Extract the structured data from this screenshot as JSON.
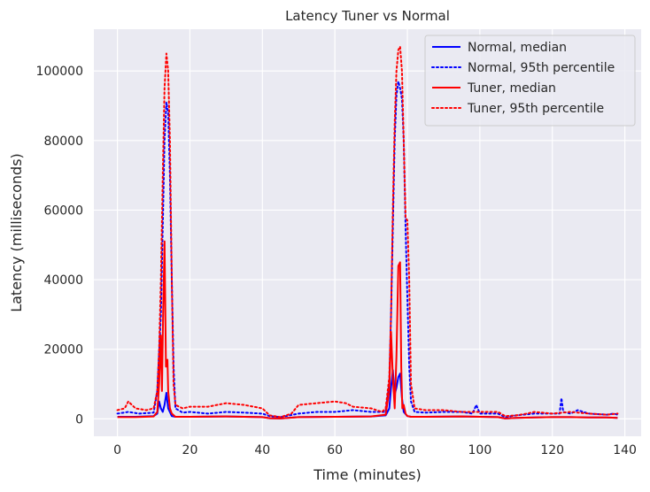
{
  "chart_data": {
    "type": "line",
    "title": "Latency Tuner vs Normal",
    "xlabel": "Time (minutes)",
    "ylabel": "Latency (milliseconds)",
    "xlim": [
      -6.5,
      144.5
    ],
    "ylim": [
      -5000,
      112000
    ],
    "xticks": [
      0,
      20,
      40,
      60,
      80,
      100,
      120,
      140
    ],
    "yticks": [
      0,
      20000,
      40000,
      60000,
      80000,
      100000
    ],
    "grid": true,
    "legend_position": "top-right",
    "series": [
      {
        "name": "Normal, median",
        "color": "#0000ff",
        "style": "solid",
        "x": [
          0,
          5,
          10,
          11,
          11.5,
          12,
          12.5,
          13,
          13.5,
          14,
          15,
          16,
          20,
          30,
          40,
          42,
          45,
          50,
          60,
          70,
          74,
          75,
          75.5,
          76,
          76.5,
          77,
          77.5,
          78,
          78.5,
          79,
          80,
          81,
          85,
          95,
          100,
          105,
          107,
          110,
          115,
          120,
          125,
          130,
          135,
          138
        ],
        "y": [
          600,
          600,
          800,
          1500,
          5000,
          3000,
          2000,
          4000,
          7500,
          3000,
          800,
          600,
          600,
          700,
          500,
          200,
          100,
          500,
          600,
          700,
          1000,
          3000,
          9000,
          14000,
          7000,
          9000,
          12000,
          13000,
          6000,
          2000,
          800,
          600,
          600,
          700,
          600,
          500,
          100,
          300,
          400,
          500,
          500,
          400,
          400,
          300
        ]
      },
      {
        "name": "Normal, 95th percentile",
        "color": "#0000ff",
        "style": "dotted",
        "x": [
          0,
          3,
          6,
          10,
          11,
          12,
          12.5,
          13,
          13.5,
          14,
          14.5,
          15,
          15.5,
          16,
          18,
          20,
          25,
          30,
          35,
          40,
          42,
          45,
          50,
          55,
          60,
          65,
          70,
          74,
          75,
          75.5,
          76,
          76.5,
          77,
          77.5,
          78,
          78.5,
          79,
          79.5,
          80,
          80.5,
          81,
          82,
          85,
          90,
          95,
          98,
          99,
          100,
          105,
          107,
          110,
          115,
          120,
          122,
          122.5,
          123,
          125,
          127,
          130,
          135,
          137,
          138
        ],
        "y": [
          1500,
          2000,
          1500,
          1800,
          8000,
          30000,
          55000,
          80000,
          91000,
          88000,
          70000,
          40000,
          15000,
          3000,
          1800,
          2000,
          1500,
          2000,
          1800,
          1500,
          800,
          500,
          1500,
          2000,
          2000,
          2500,
          2000,
          2000,
          10000,
          30000,
          55000,
          80000,
          93000,
          97000,
          95000,
          92000,
          80000,
          55000,
          35000,
          15000,
          5000,
          2000,
          1800,
          2000,
          2000,
          1500,
          4000,
          1500,
          1500,
          500,
          1000,
          1500,
          1500,
          1500,
          6000,
          2000,
          1500,
          2500,
          1500,
          1200,
          1500,
          1200
        ]
      },
      {
        "name": "Tuner, median",
        "color": "#ff0000",
        "style": "solid",
        "x": [
          0,
          5,
          10,
          11,
          11.5,
          12,
          12.3,
          12.6,
          13,
          13.4,
          13.8,
          14,
          14.5,
          15,
          16,
          20,
          30,
          40,
          42,
          45,
          50,
          60,
          70,
          74,
          75,
          75.5,
          76,
          76.5,
          77,
          77.5,
          78,
          78.3,
          78.6,
          79,
          79.5,
          80,
          81,
          85,
          95,
          100,
          105,
          107,
          110,
          115,
          120,
          125,
          130,
          135,
          138
        ],
        "y": [
          500,
          500,
          700,
          2000,
          10000,
          24000,
          8000,
          30000,
          51000,
          15000,
          17000,
          8000,
          3000,
          1500,
          600,
          600,
          700,
          500,
          200,
          100,
          500,
          600,
          700,
          1200,
          8000,
          25000,
          12000,
          3000,
          18000,
          44000,
          45000,
          15000,
          3000,
          4000,
          1500,
          800,
          600,
          600,
          700,
          600,
          500,
          100,
          300,
          400,
          500,
          500,
          400,
          400,
          300
        ]
      },
      {
        "name": "Tuner, 95th percentile",
        "color": "#ff0000",
        "style": "dotted",
        "x": [
          0,
          2,
          3,
          5,
          8,
          10,
          11,
          11.5,
          12,
          12.5,
          13,
          13.5,
          14,
          14.5,
          15,
          15.5,
          16,
          18,
          20,
          25,
          30,
          35,
          40,
          42,
          45,
          48,
          50,
          55,
          60,
          63,
          65,
          70,
          73,
          74,
          75,
          75.5,
          76,
          76.5,
          77,
          77.5,
          78,
          78.5,
          79,
          79.5,
          80,
          80.5,
          81,
          82,
          85,
          90,
          95,
          100,
          105,
          107,
          110,
          113,
          115,
          120,
          125,
          130,
          135,
          138
        ],
        "y": [
          2500,
          3000,
          5000,
          3000,
          2500,
          3000,
          8000,
          20000,
          40000,
          70000,
          95000,
          105000,
          100000,
          80000,
          40000,
          10000,
          4000,
          3000,
          3500,
          3500,
          4500,
          4000,
          3000,
          1000,
          500,
          1500,
          4000,
          4500,
          5000,
          4500,
          3500,
          3000,
          2000,
          3000,
          12000,
          30000,
          60000,
          85000,
          100000,
          106000,
          107000,
          100000,
          80000,
          58000,
          57000,
          40000,
          10000,
          3000,
          2500,
          2500,
          2000,
          2000,
          2000,
          800,
          1000,
          1500,
          2000,
          1500,
          2000,
          1500,
          1200,
          1500
        ]
      }
    ]
  }
}
